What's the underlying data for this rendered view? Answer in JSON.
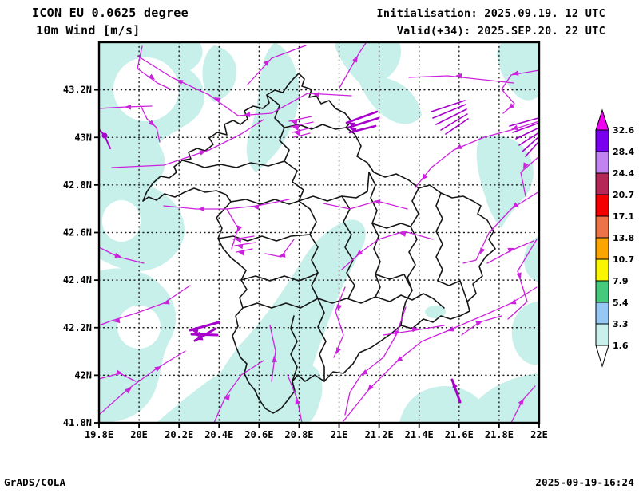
{
  "header": {
    "model": "ICON EU 0.0625 degree",
    "field": "10m Wind [m/s]",
    "init_label": "Initialisation: 2025.09.19. 12 UTC",
    "valid_label": "Valid(+34): 2025.SEP.20. 22 UTC"
  },
  "footer": {
    "credit": "GrADS/COLA",
    "timestamp": "2025-09-19-16:24"
  },
  "axes": {
    "lon_ticks": [
      {
        "label": "19.8E",
        "lon": 19.8
      },
      {
        "label": "20E",
        "lon": 20.0
      },
      {
        "label": "20.2E",
        "lon": 20.2
      },
      {
        "label": "20.4E",
        "lon": 20.4
      },
      {
        "label": "20.6E",
        "lon": 20.6
      },
      {
        "label": "20.8E",
        "lon": 20.8
      },
      {
        "label": "21E",
        "lon": 21.0
      },
      {
        "label": "21.2E",
        "lon": 21.2
      },
      {
        "label": "21.4E",
        "lon": 21.4
      },
      {
        "label": "21.6E",
        "lon": 21.6
      },
      {
        "label": "21.8E",
        "lon": 21.8
      },
      {
        "label": "22E",
        "lon": 22.0
      }
    ],
    "lat_ticks": [
      {
        "label": "43.2N",
        "lat": 43.2
      },
      {
        "label": "43N",
        "lat": 43.0
      },
      {
        "label": "42.8N",
        "lat": 42.8
      },
      {
        "label": "42.6N",
        "lat": 42.6
      },
      {
        "label": "42.4N",
        "lat": 42.4
      },
      {
        "label": "42.2N",
        "lat": 42.2
      },
      {
        "label": "42N",
        "lat": 42.0
      },
      {
        "label": "41.8N",
        "lat": 41.8
      }
    ]
  },
  "colorbar": {
    "levels": [
      "32.6",
      "28.4",
      "24.4",
      "20.7",
      "17.1",
      "13.8",
      "10.7",
      "7.9",
      "5.4",
      "3.3",
      "1.6"
    ],
    "segment_colors": [
      "#7A00F0",
      "#C183F0",
      "#B42858",
      "#F50000",
      "#EB7347",
      "#FAA500",
      "#FAF500",
      "#46C87D",
      "#96C8F5",
      "#C9F0EC"
    ],
    "above_color": "#F000F0",
    "below_color": "#FFFFFF"
  },
  "map": {
    "shade_color": "#C7F0EB",
    "wind_color": "#CC22DD",
    "wind_thick_color": "#A800CC",
    "boundary_color": "#161616",
    "shaded_range_label": "1.6 - 3.3 m/s"
  }
}
